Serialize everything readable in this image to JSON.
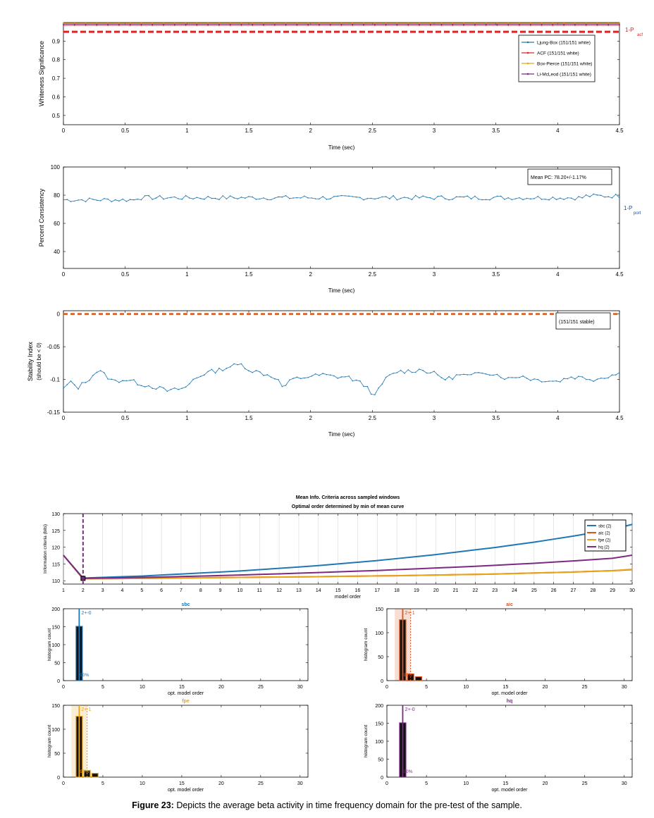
{
  "colors": {
    "blue": "#1f77b4",
    "red": "#d62728",
    "orange": "#ff7f0e",
    "gold": "#e8a317",
    "purple": "#7b2b84",
    "dashred": "#dd2222",
    "dashorange": "#dd5511"
  },
  "chart_data": [
    {
      "type": "line",
      "xlabel": "Time (sec)",
      "ylabel": "Whiteness Significance",
      "xlim": [
        0,
        4.5
      ],
      "ylim": [
        0.45,
        1.0
      ],
      "xticks": [
        "0",
        "0.5",
        "1",
        "1.5",
        "2",
        "2.5",
        "3",
        "3.5",
        "4",
        "4.5"
      ],
      "yticks": [
        "0.5",
        "0.6",
        "0.7",
        "0.8",
        "0.9"
      ],
      "threshold": {
        "value": 0.95,
        "label_main": "1-P",
        "label_sub": "acf"
      },
      "series": [
        {
          "name": "Ljung-Box (151/151 white)",
          "color": "#1f77b4",
          "values": [
            0.995
          ]
        },
        {
          "name": "ACF (151/151 white)",
          "color": "#d62728",
          "values": [
            0.985
          ]
        },
        {
          "name": "Box-Pierce (151/151 white)",
          "color": "#e8a317",
          "values": [
            0.997
          ]
        },
        {
          "name": "Li-McLeod (151/151 white)",
          "color": "#7b2b84",
          "values": [
            0.99
          ]
        }
      ],
      "legend": "top-right"
    },
    {
      "type": "line",
      "xlabel": "Time (sec)",
      "ylabel": "Percent Consistency",
      "xlim": [
        0,
        4.5
      ],
      "ylim": [
        28,
        100
      ],
      "xticks": [
        "0",
        "0.5",
        "1",
        "1.5",
        "2",
        "2.5",
        "3",
        "3.5",
        "4",
        "4.5"
      ],
      "yticks": [
        "40",
        "60",
        "80",
        "100"
      ],
      "annotation": "Mean PC: 78.20+/-1.17%",
      "side_label_main": "1-P",
      "side_label_sub": "port",
      "mean": 78.2,
      "series": [
        {
          "color": "#1f77b4"
        }
      ]
    },
    {
      "type": "line",
      "xlabel": "Time (sec)",
      "ylabel": "Stability Index",
      "ylabel2": "(should be < 0)",
      "xlim": [
        0,
        4.5
      ],
      "ylim": [
        -0.15,
        0.005
      ],
      "xticks": [
        "0",
        "0.5",
        "1",
        "1.5",
        "2",
        "2.5",
        "3",
        "3.5",
        "4",
        "4.5"
      ],
      "yticks": [
        "-0.15",
        "-0.1",
        "-0.05",
        "0"
      ],
      "threshold": {
        "value": 0
      },
      "annotation": "(151/151 stable)",
      "anchors": [
        [
          0,
          -0.115
        ],
        [
          0.05,
          -0.104
        ],
        [
          0.12,
          -0.112
        ],
        [
          0.2,
          -0.1
        ],
        [
          0.28,
          -0.086
        ],
        [
          0.35,
          -0.095
        ],
        [
          0.4,
          -0.103
        ],
        [
          0.5,
          -0.1
        ],
        [
          0.65,
          -0.108
        ],
        [
          0.75,
          -0.112
        ],
        [
          0.85,
          -0.118
        ],
        [
          0.95,
          -0.114
        ],
        [
          1.0,
          -0.112
        ],
        [
          1.05,
          -0.1
        ],
        [
          1.15,
          -0.09
        ],
        [
          1.25,
          -0.086
        ],
        [
          1.35,
          -0.08
        ],
        [
          1.45,
          -0.077
        ],
        [
          1.5,
          -0.085
        ],
        [
          1.6,
          -0.09
        ],
        [
          1.72,
          -0.097
        ],
        [
          1.78,
          -0.113
        ],
        [
          1.85,
          -0.1
        ],
        [
          2.0,
          -0.095
        ],
        [
          2.1,
          -0.093
        ],
        [
          2.2,
          -0.096
        ],
        [
          2.3,
          -0.096
        ],
        [
          2.45,
          -0.11
        ],
        [
          2.52,
          -0.126
        ],
        [
          2.6,
          -0.1
        ],
        [
          2.7,
          -0.088
        ],
        [
          2.8,
          -0.087
        ],
        [
          2.9,
          -0.085
        ],
        [
          3.0,
          -0.091
        ],
        [
          3.1,
          -0.1
        ],
        [
          3.2,
          -0.093
        ],
        [
          3.3,
          -0.095
        ],
        [
          3.4,
          -0.088
        ],
        [
          3.5,
          -0.092
        ],
        [
          3.6,
          -0.099
        ],
        [
          3.7,
          -0.094
        ],
        [
          3.8,
          -0.1
        ],
        [
          3.9,
          -0.101
        ],
        [
          4.0,
          -0.103
        ],
        [
          4.1,
          -0.096
        ],
        [
          4.2,
          -0.097
        ],
        [
          4.3,
          -0.1
        ],
        [
          4.4,
          -0.095
        ],
        [
          4.5,
          -0.091
        ]
      ],
      "series": [
        {
          "color": "#1f77b4"
        }
      ]
    },
    {
      "type": "line",
      "title": "Mean Info. Criteria across sampled windows",
      "subtitle": "Optimal order determined by min of mean curve",
      "xlabel": "model order",
      "ylabel": "Information criteria (bits)",
      "xlim": [
        1,
        30
      ],
      "ylim": [
        109,
        130
      ],
      "xticks": [
        "1",
        "2",
        "3",
        "4",
        "5",
        "6",
        "7",
        "8",
        "9",
        "10",
        "11",
        "12",
        "13",
        "14",
        "15",
        "16",
        "17",
        "18",
        "19",
        "20",
        "21",
        "22",
        "23",
        "24",
        "25",
        "26",
        "27",
        "28",
        "29",
        "30"
      ],
      "yticks": [
        "110",
        "115",
        "120",
        "125",
        "130"
      ],
      "optimal_order": 2,
      "x": [
        1,
        2,
        3,
        4,
        5,
        6,
        7,
        8,
        9,
        10,
        11,
        12,
        13,
        14,
        15,
        16,
        17,
        18,
        19,
        20,
        21,
        22,
        23,
        24,
        25,
        26,
        27,
        28,
        29,
        30
      ],
      "series": [
        {
          "name": "sbc (2)",
          "color": "#1f77b4",
          "values": [
            117.6,
            110.8,
            111.0,
            111.2,
            111.4,
            111.7,
            112.0,
            112.3,
            112.6,
            112.9,
            113.3,
            113.7,
            114.1,
            114.5,
            115.0,
            115.5,
            116.0,
            116.6,
            117.2,
            117.8,
            118.5,
            119.2,
            119.9,
            120.7,
            121.5,
            122.4,
            123.3,
            124.3,
            125.3,
            126.8
          ]
        },
        {
          "name": "aic (2)",
          "color": "#d9541e",
          "values": [
            117.6,
            110.6,
            110.6,
            110.65,
            110.7,
            110.75,
            110.8,
            110.9,
            110.95,
            111.0,
            111.05,
            111.1,
            111.15,
            111.2,
            111.3,
            111.35,
            111.45,
            111.5,
            111.6,
            111.7,
            111.8,
            111.9,
            112.0,
            112.15,
            112.3,
            112.45,
            112.6,
            112.8,
            113.0,
            113.3
          ]
        },
        {
          "name": "fpe (2)",
          "color": "#e8a317",
          "values": [
            117.6,
            110.6,
            110.6,
            110.65,
            110.7,
            110.75,
            110.8,
            110.9,
            110.95,
            111.0,
            111.05,
            111.1,
            111.15,
            111.2,
            111.3,
            111.35,
            111.45,
            111.5,
            111.6,
            111.7,
            111.8,
            111.9,
            112.0,
            112.15,
            112.3,
            112.45,
            112.6,
            112.8,
            113.0,
            113.4
          ]
        },
        {
          "name": "hq (2)",
          "color": "#7b2b84",
          "values": [
            117.6,
            110.7,
            110.8,
            110.9,
            111.0,
            111.1,
            111.25,
            111.4,
            111.55,
            111.7,
            111.9,
            112.05,
            112.25,
            112.45,
            112.65,
            112.85,
            113.05,
            113.3,
            113.55,
            113.8,
            114.05,
            114.3,
            114.6,
            114.9,
            115.2,
            115.55,
            115.9,
            116.3,
            116.7,
            117.6
          ]
        }
      ],
      "legend": "top-right"
    },
    {
      "type": "bar",
      "title": "sbc",
      "xlabel": "opt. model order",
      "ylabel": "histogram count",
      "xlim": [
        0,
        31
      ],
      "ylim": [
        0,
        200
      ],
      "xticks": [
        "0",
        "5",
        "10",
        "15",
        "20",
        "25",
        "30"
      ],
      "yticks": [
        "0",
        "50",
        "100",
        "150",
        "200"
      ],
      "color": "#1f77b4",
      "mode": 2,
      "mode_label": "2+-0",
      "percent_label": "90%",
      "bars": [
        {
          "x": 2,
          "value": 151
        }
      ]
    },
    {
      "type": "bar",
      "title": "aic",
      "xlabel": "opt. model order",
      "ylabel": "histogram count",
      "xlim": [
        0,
        31
      ],
      "ylim": [
        0,
        150
      ],
      "xticks": [
        "0",
        "5",
        "10",
        "15",
        "20",
        "25",
        "30"
      ],
      "yticks": [
        "0",
        "50",
        "100",
        "150"
      ],
      "color": "#d9541e",
      "mode": 2,
      "mode_label": "2+-1",
      "percent_label": "90%",
      "band": [
        1.0,
        3.0
      ],
      "bars": [
        {
          "x": 2,
          "value": 127
        },
        {
          "x": 3,
          "value": 14
        },
        {
          "x": 4,
          "value": 8
        }
      ]
    },
    {
      "type": "bar",
      "title": "fpe",
      "xlabel": "opt. model order",
      "ylabel": "histogram count",
      "xlim": [
        0,
        31
      ],
      "ylim": [
        0,
        150
      ],
      "xticks": [
        "0",
        "5",
        "10",
        "15",
        "20",
        "25",
        "30"
      ],
      "yticks": [
        "0",
        "50",
        "100",
        "150"
      ],
      "color": "#e8a317",
      "mode": 2,
      "mode_label": "2+-1",
      "percent_label": "90%",
      "band": [
        1.0,
        3.0
      ],
      "bars": [
        {
          "x": 2,
          "value": 127
        },
        {
          "x": 3,
          "value": 14
        },
        {
          "x": 4,
          "value": 8
        }
      ]
    },
    {
      "type": "bar",
      "title": "hq",
      "xlabel": "opt. model order",
      "ylabel": "histogram count",
      "xlim": [
        0,
        31
      ],
      "ylim": [
        0,
        200
      ],
      "xticks": [
        "0",
        "5",
        "10",
        "15",
        "20",
        "25",
        "30"
      ],
      "yticks": [
        "0",
        "50",
        "100",
        "150",
        "200"
      ],
      "color": "#7b2b84",
      "mode": 2,
      "mode_label": "2+-0",
      "percent_label": "90%",
      "bars": [
        {
          "x": 2,
          "value": 151
        }
      ]
    }
  ],
  "caption": {
    "bold": "Figure 23:",
    "text": " Depicts the average beta activity in time frequency domain for the pre-test of the sample."
  }
}
